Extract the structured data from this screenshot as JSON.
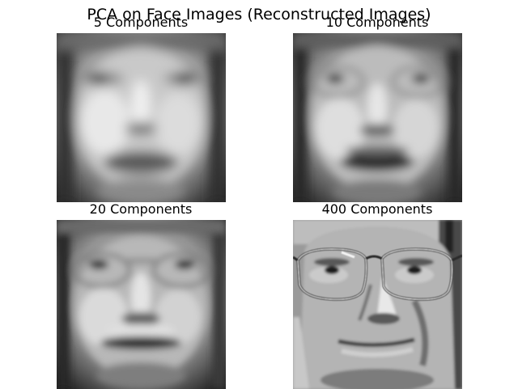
{
  "chart_data": {
    "type": "image-grid",
    "title": "PCA on Face Images (Reconstructed Images)",
    "panels": [
      {
        "title": "5 Components",
        "n_components": 5
      },
      {
        "title": "10 Components",
        "n_components": 10
      },
      {
        "title": "20 Components",
        "n_components": 20
      },
      {
        "title": "400 Components",
        "n_components": 400
      }
    ],
    "colormap": "gray"
  }
}
